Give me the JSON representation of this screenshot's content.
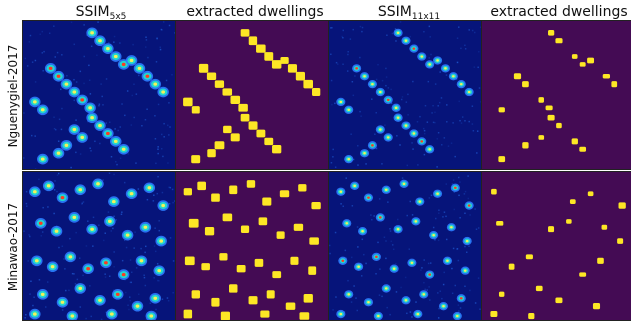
{
  "figure": {
    "columns": [
      {
        "prefix": "SSIM",
        "sub": "5x5",
        "kind": "ssim"
      },
      {
        "prefix": "extracted dwellings",
        "sub": "",
        "kind": "mask"
      },
      {
        "prefix": "SSIM",
        "sub": "11x11",
        "kind": "ssim"
      },
      {
        "prefix": "extracted dwellings",
        "sub": "",
        "kind": "mask"
      }
    ],
    "rows": [
      {
        "label": "Nguenygiel-2017",
        "layout": "aligned"
      },
      {
        "label": "Minawao-2017",
        "layout": "scattered"
      }
    ],
    "colors": {
      "ssim_background": "#06147a",
      "ssim_hot": "#f2f25a",
      "ssim_mid": "#22d6d0",
      "ssim_low": "#2b7cff",
      "ssim_edge": "#ff3b20",
      "mask_background": "#440b54",
      "mask_foreground": "#fde725"
    }
  }
}
